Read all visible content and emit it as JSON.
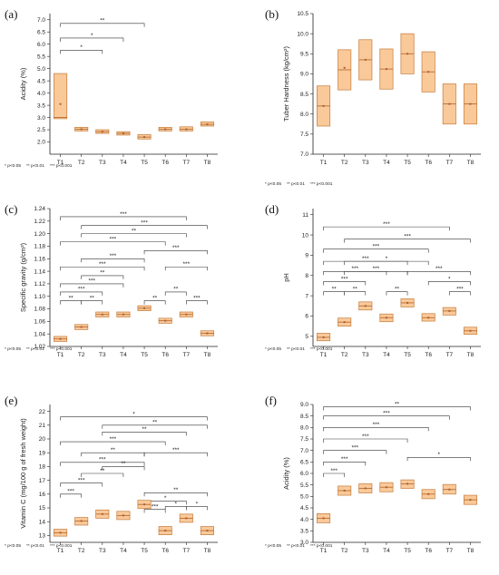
{
  "colors": {
    "box_fill": "#f9c99a",
    "box_stroke": "#c57b3a",
    "median": "#b0622a",
    "bracket": "#333333",
    "axis": "#222222"
  },
  "footnote": {
    "p1": "* p<0.05",
    "p2": "** p<0.01",
    "p3": "*** p<0.001"
  },
  "chart_data": [
    {
      "panel": "(a)",
      "type": "box",
      "ylabel": "Acidity (%)",
      "categories": [
        "T1",
        "T2",
        "T3",
        "T4",
        "T5",
        "T6",
        "T7",
        "T8"
      ],
      "ylim": [
        1.5,
        7.25
      ],
      "yticks": [
        "2.0",
        "2.5",
        "3.0",
        "3.5",
        "4.0",
        "4.5",
        "5.0",
        "5.5",
        "6.0",
        "6.5",
        "7.0"
      ],
      "ytick_vals": [
        2.0,
        2.5,
        3.0,
        3.5,
        4.0,
        4.5,
        5.0,
        5.5,
        6.0,
        6.5,
        7.0
      ],
      "boxes": [
        [
          2.95,
          3.0,
          4.8,
          3.55
        ],
        [
          2.45,
          2.52,
          2.6,
          2.52
        ],
        [
          2.35,
          2.42,
          2.5,
          2.42
        ],
        [
          2.28,
          2.35,
          2.42,
          2.35
        ],
        [
          2.12,
          2.2,
          2.3,
          2.2
        ],
        [
          2.45,
          2.52,
          2.6,
          2.52
        ],
        [
          2.45,
          2.52,
          2.62,
          2.52
        ],
        [
          2.65,
          2.72,
          2.82,
          2.72
        ]
      ],
      "brackets": [
        {
          "from": "T1",
          "to": "T3",
          "y": 5.75,
          "label": "*"
        },
        {
          "from": "T1",
          "to": "T4",
          "y": 6.25,
          "label": "*"
        },
        {
          "from": "T1",
          "to": "T5",
          "y": 6.85,
          "label": "**"
        }
      ]
    },
    {
      "panel": "(b)",
      "type": "box",
      "ylabel": "Tuber Hardness (kg/cm²)",
      "categories": [
        "T1",
        "T2",
        "T3",
        "T4",
        "T5",
        "T6",
        "T7",
        "T8"
      ],
      "ylim": [
        7.0,
        10.5
      ],
      "yticks": [
        "7.0",
        "7.5",
        "8.0",
        "8.5",
        "9.0",
        "9.5",
        "10.0",
        "10.5"
      ],
      "ytick_vals": [
        7.0,
        7.5,
        8.0,
        8.5,
        9.0,
        9.5,
        10.0,
        10.5
      ],
      "boxes": [
        [
          7.7,
          8.2,
          8.7,
          8.2
        ],
        [
          8.6,
          9.1,
          9.6,
          9.15
        ],
        [
          8.85,
          9.35,
          9.85,
          9.35
        ],
        [
          8.62,
          9.12,
          9.62,
          9.12
        ],
        [
          9.0,
          9.5,
          10.0,
          9.5
        ],
        [
          8.55,
          9.05,
          9.55,
          9.05
        ],
        [
          7.75,
          8.25,
          8.75,
          8.25
        ],
        [
          7.75,
          8.25,
          8.75,
          8.25
        ]
      ],
      "brackets": []
    },
    {
      "panel": "(c)",
      "type": "box",
      "ylabel": "Specific gravity (g/cm³)",
      "categories": [
        "T1",
        "T2",
        "T3",
        "T4",
        "T5",
        "T6",
        "T7",
        "T8"
      ],
      "ylim": [
        1.02,
        1.24
      ],
      "yticks": [
        "1.02",
        "1.04",
        "1.06",
        "1.08",
        "1.10",
        "1.12",
        "1.14",
        "1.16",
        "1.18",
        "1.20",
        "1.22",
        "1.24"
      ],
      "ytick_vals": [
        1.02,
        1.04,
        1.06,
        1.08,
        1.1,
        1.12,
        1.14,
        1.16,
        1.18,
        1.2,
        1.22,
        1.24
      ],
      "boxes": [
        [
          1.028,
          1.032,
          1.036,
          1.032
        ],
        [
          1.047,
          1.051,
          1.055,
          1.051
        ],
        [
          1.067,
          1.071,
          1.075,
          1.071
        ],
        [
          1.067,
          1.071,
          1.075,
          1.071
        ],
        [
          1.077,
          1.081,
          1.085,
          1.081
        ],
        [
          1.057,
          1.061,
          1.065,
          1.061
        ],
        [
          1.067,
          1.071,
          1.075,
          1.071
        ],
        [
          1.037,
          1.041,
          1.045,
          1.041
        ]
      ],
      "brackets": [
        {
          "from": "T1",
          "to": "T2",
          "y": 1.093,
          "label": "**"
        },
        {
          "from": "T2",
          "to": "T3",
          "y": 1.093,
          "label": "**"
        },
        {
          "from": "T1",
          "to": "T3",
          "y": 1.107,
          "label": "***"
        },
        {
          "from": "T1",
          "to": "T4",
          "y": 1.12,
          "label": "***"
        },
        {
          "from": "T2",
          "to": "T4",
          "y": 1.133,
          "label": "**"
        },
        {
          "from": "T1",
          "to": "T5",
          "y": 1.147,
          "label": "***"
        },
        {
          "from": "T2",
          "to": "T5",
          "y": 1.16,
          "label": "***"
        },
        {
          "from": "T1",
          "to": "T6",
          "y": 1.187,
          "label": "***"
        },
        {
          "from": "T2",
          "to": "T7",
          "y": 1.2,
          "label": "**"
        },
        {
          "from": "T5",
          "to": "T8",
          "y": 1.173,
          "label": "***"
        },
        {
          "from": "T1",
          "to": "T7",
          "y": 1.227,
          "label": "***"
        },
        {
          "from": "T2",
          "to": "T8",
          "y": 1.213,
          "label": "***"
        },
        {
          "from": "T5",
          "to": "T6",
          "y": 1.093,
          "label": "**"
        },
        {
          "from": "T6",
          "to": "T8",
          "y": 1.147,
          "label": "***"
        },
        {
          "from": "T6",
          "to": "T7",
          "y": 1.107,
          "label": "**"
        },
        {
          "from": "T7",
          "to": "T8",
          "y": 1.093,
          "label": "***"
        }
      ]
    },
    {
      "panel": "(d)",
      "type": "box",
      "ylabel": "pH",
      "categories": [
        "T1",
        "T2",
        "T3",
        "T4",
        "T5",
        "T6",
        "T7",
        "T8"
      ],
      "ylim": [
        4.5,
        11.3
      ],
      "yticks": [
        "5",
        "6",
        "7",
        "8",
        "9",
        "10",
        "11"
      ],
      "ytick_vals": [
        5,
        6,
        7,
        8,
        9,
        10,
        11
      ],
      "boxes": [
        [
          4.78,
          4.95,
          5.15,
          4.95
        ],
        [
          5.5,
          5.7,
          5.9,
          5.7
        ],
        [
          6.3,
          6.5,
          6.7,
          6.5
        ],
        [
          5.72,
          5.92,
          6.1,
          5.92
        ],
        [
          6.45,
          6.65,
          6.85,
          6.65
        ],
        [
          5.75,
          5.92,
          6.12,
          5.92
        ],
        [
          6.05,
          6.25,
          6.42,
          6.25
        ],
        [
          5.1,
          5.27,
          5.45,
          5.27
        ]
      ],
      "brackets": [
        {
          "from": "T1",
          "to": "T2",
          "y": 7.2,
          "label": "**"
        },
        {
          "from": "T2",
          "to": "T3",
          "y": 7.2,
          "label": "**"
        },
        {
          "from": "T1",
          "to": "T3",
          "y": 7.7,
          "label": "***"
        },
        {
          "from": "T1",
          "to": "T4",
          "y": 8.2,
          "label": "***"
        },
        {
          "from": "T1",
          "to": "T5",
          "y": 8.7,
          "label": "***"
        },
        {
          "from": "T2",
          "to": "T5",
          "y": 8.2,
          "label": "***"
        },
        {
          "from": "T4",
          "to": "T5",
          "y": 7.2,
          "label": "**"
        },
        {
          "from": "T5",
          "to": "T8",
          "y": 8.2,
          "label": "***"
        },
        {
          "from": "T1",
          "to": "T6",
          "y": 9.3,
          "label": "***"
        },
        {
          "from": "T2",
          "to": "T8",
          "y": 9.8,
          "label": "***"
        },
        {
          "from": "T1",
          "to": "T7",
          "y": 10.4,
          "label": "***"
        },
        {
          "from": "T2",
          "to": "T6",
          "y": 8.7,
          "label": "*"
        },
        {
          "from": "T7",
          "to": "T8",
          "y": 7.2,
          "label": "***"
        },
        {
          "from": "T6",
          "to": "T8",
          "y": 7.7,
          "label": "*"
        }
      ]
    },
    {
      "panel": "(e)",
      "type": "box",
      "ylabel": "Vitamin C (mg/100 g of fresh weight)",
      "categories": [
        "T1",
        "T2",
        "T3",
        "T4",
        "T5",
        "T6",
        "T7",
        "T8"
      ],
      "ylim": [
        12.5,
        22.5
      ],
      "yticks": [
        "13",
        "14",
        "15",
        "16",
        "17",
        "18",
        "19",
        "20",
        "21",
        "22"
      ],
      "ytick_vals": [
        13,
        14,
        15,
        16,
        17,
        18,
        19,
        20,
        21,
        22
      ],
      "boxes": [
        [
          12.95,
          13.2,
          13.45,
          13.2
        ],
        [
          13.75,
          14.05,
          14.3,
          14.05
        ],
        [
          14.25,
          14.55,
          14.85,
          14.55
        ],
        [
          14.15,
          14.45,
          14.75,
          14.45
        ],
        [
          14.95,
          15.25,
          15.55,
          15.25
        ],
        [
          13.05,
          13.35,
          13.65,
          13.35
        ],
        [
          13.95,
          14.25,
          14.55,
          14.25
        ],
        [
          13.05,
          13.35,
          13.65,
          13.35
        ]
      ],
      "brackets": [
        {
          "from": "T1",
          "to": "T2",
          "y": 16.0,
          "label": "***"
        },
        {
          "from": "T1",
          "to": "T3",
          "y": 16.8,
          "label": "***"
        },
        {
          "from": "T2",
          "to": "T4",
          "y": 17.5,
          "label": "**"
        },
        {
          "from": "T1",
          "to": "T5",
          "y": 18.3,
          "label": "***"
        },
        {
          "from": "T2",
          "to": "T5",
          "y": 19.0,
          "label": "**"
        },
        {
          "from": "T1",
          "to": "T6",
          "y": 19.8,
          "label": "***"
        },
        {
          "from": "T3",
          "to": "T5",
          "y": 18.0,
          "label": "**"
        },
        {
          "from": "T5",
          "to": "T8",
          "y": 19.0,
          "label": "***"
        },
        {
          "from": "T3",
          "to": "T7",
          "y": 20.5,
          "label": "**"
        },
        {
          "from": "T1",
          "to": "T8",
          "y": 21.6,
          "label": "*"
        },
        {
          "from": "T3",
          "to": "T8",
          "y": 21.0,
          "label": "**"
        },
        {
          "from": "T5",
          "to": "T6",
          "y": 14.9,
          "label": "***"
        },
        {
          "from": "T5",
          "to": "T7",
          "y": 15.5,
          "label": "*"
        },
        {
          "from": "T6",
          "to": "T7",
          "y": 15.1,
          "label": "*"
        },
        {
          "from": "T7",
          "to": "T8",
          "y": 15.1,
          "label": "*"
        },
        {
          "from": "T5",
          "to": "T8",
          "y": 16.1,
          "label": "**"
        }
      ]
    },
    {
      "panel": "(f)",
      "type": "box",
      "ylabel": "Acidity (%)",
      "categories": [
        "T1",
        "T2",
        "T3",
        "T4",
        "T5",
        "T6",
        "T7",
        "T8"
      ],
      "ylim": [
        3.0,
        9.0
      ],
      "yticks": [
        "3.0",
        "3.5",
        "4.0",
        "4.5",
        "5.0",
        "5.5",
        "6.0",
        "6.5",
        "7.0",
        "7.5",
        "8.0",
        "8.5",
        "9.0"
      ],
      "ytick_vals": [
        3.0,
        3.5,
        4.0,
        4.5,
        5.0,
        5.5,
        6.0,
        6.5,
        7.0,
        7.5,
        8.0,
        8.5,
        9.0
      ],
      "boxes": [
        [
          3.85,
          4.05,
          4.25,
          4.05
        ],
        [
          5.05,
          5.25,
          5.45,
          5.25
        ],
        [
          5.15,
          5.35,
          5.55,
          5.35
        ],
        [
          5.2,
          5.4,
          5.6,
          5.4
        ],
        [
          5.35,
          5.55,
          5.72,
          5.55
        ],
        [
          4.9,
          5.1,
          5.3,
          5.1
        ],
        [
          5.1,
          5.3,
          5.52,
          5.3
        ],
        [
          4.65,
          4.85,
          5.05,
          4.85
        ]
      ],
      "brackets": [
        {
          "from": "T1",
          "to": "T2",
          "y": 6.0,
          "label": "***"
        },
        {
          "from": "T1",
          "to": "T3",
          "y": 6.5,
          "label": "***"
        },
        {
          "from": "T1",
          "to": "T4",
          "y": 7.0,
          "label": "***"
        },
        {
          "from": "T1",
          "to": "T5",
          "y": 7.5,
          "label": "***"
        },
        {
          "from": "T1",
          "to": "T6",
          "y": 8.0,
          "label": "***"
        },
        {
          "from": "T1",
          "to": "T7",
          "y": 8.5,
          "label": "***"
        },
        {
          "from": "T1",
          "to": "T8",
          "y": 8.9,
          "label": "**"
        },
        {
          "from": "T5",
          "to": "T8",
          "y": 6.7,
          "label": "*"
        }
      ]
    }
  ]
}
